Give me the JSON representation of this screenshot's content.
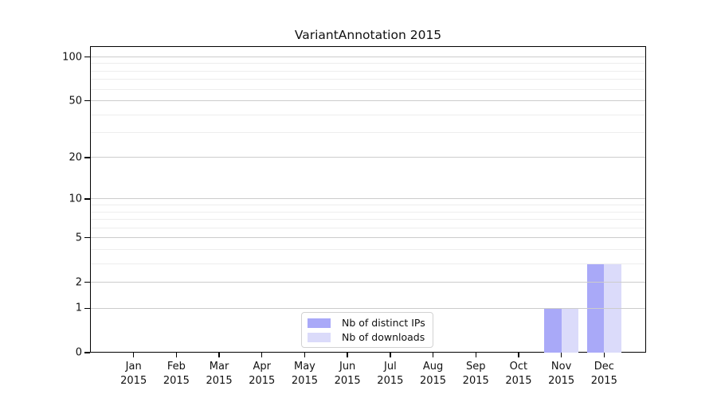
{
  "title": "VariantAnnotation 2015",
  "chart_data": {
    "type": "bar",
    "title": "VariantAnnotation 2015",
    "x": {
      "categories": [
        "Jan",
        "Feb",
        "Mar",
        "Apr",
        "May",
        "Jun",
        "Jul",
        "Aug",
        "Sep",
        "Oct",
        "Nov",
        "Dec"
      ],
      "year": "2015"
    },
    "y_axis": {
      "scale": "log1p",
      "ticks": [
        0,
        1,
        2,
        5,
        10,
        20,
        50,
        100
      ],
      "tick_labels": [
        "0",
        "1",
        "2",
        "5",
        "10",
        "20",
        "50",
        "100"
      ],
      "minor_gridlines": [
        3,
        4,
        6,
        7,
        8,
        9,
        30,
        40,
        60,
        70,
        80,
        90
      ],
      "ylim": [
        0,
        100
      ]
    },
    "series": [
      {
        "name": "Nb of distinct IPs",
        "color": "#a9a9f8",
        "values": [
          0,
          0,
          0,
          0,
          0,
          0,
          0,
          0,
          0,
          0,
          1,
          3
        ]
      },
      {
        "name": "Nb of downloads",
        "color": "#dbdbfa",
        "values": [
          0,
          0,
          0,
          0,
          0,
          0,
          0,
          0,
          0,
          0,
          1,
          3
        ]
      }
    ],
    "legend_position": "bottom-center",
    "grid": true
  },
  "colors": {
    "background": "#ffffff",
    "axis": "#000000",
    "grid_major": "#cccccc",
    "grid_minor": "#ededed"
  }
}
